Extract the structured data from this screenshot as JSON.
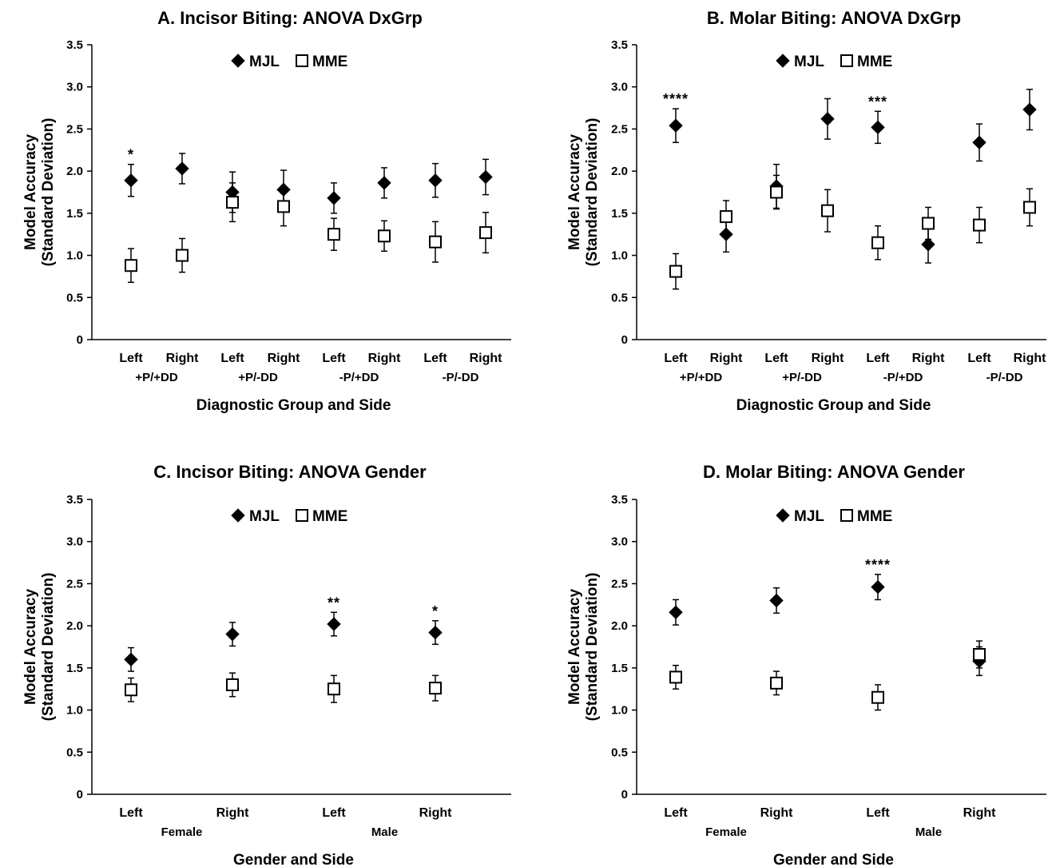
{
  "chart_data": [
    {
      "type": "scatter",
      "title": "A. Incisor Biting: ANOVA DxGrp",
      "ylabel": [
        "Model Accuracy",
        "(Standard Deviation)"
      ],
      "xlabel": "Diagnostic Group and Side",
      "ylim": [
        0,
        3.5
      ],
      "yticks": [
        "0",
        "0.5",
        "1.0",
        "1.5",
        "2.0",
        "2.5",
        "3.0",
        "3.5"
      ],
      "legend": [
        "MJL",
        "MME"
      ],
      "categories": [
        "Left",
        "Right",
        "Left",
        "Right",
        "Left",
        "Right",
        "Left",
        "Right"
      ],
      "groups": [
        {
          "label": "+P/+DD",
          "span": [
            0,
            1
          ]
        },
        {
          "label": "+P/-DD",
          "span": [
            2,
            3
          ]
        },
        {
          "label": "-P/+DD",
          "span": [
            4,
            5
          ]
        },
        {
          "label": "-P/-DD",
          "span": [
            6,
            7
          ]
        }
      ],
      "series": [
        {
          "name": "MJL",
          "marker": "diamond",
          "values": [
            1.89,
            2.03,
            1.75,
            1.78,
            1.68,
            1.86,
            1.89,
            1.93
          ],
          "err": [
            0.19,
            0.18,
            0.24,
            0.23,
            0.18,
            0.18,
            0.2,
            0.21
          ]
        },
        {
          "name": "MME",
          "marker": "square",
          "values": [
            0.88,
            1.0,
            1.63,
            1.58,
            1.25,
            1.23,
            1.16,
            1.27
          ],
          "err": [
            0.2,
            0.2,
            0.23,
            0.23,
            0.19,
            0.18,
            0.24,
            0.24
          ]
        }
      ],
      "annotations": [
        {
          "index": 0,
          "text": "*"
        }
      ]
    },
    {
      "type": "scatter",
      "title": "B. Molar Biting: ANOVA DxGrp",
      "ylabel": [
        "Model Accuracy",
        "(Standard Deviation)"
      ],
      "xlabel": "Diagnostic Group and Side",
      "ylim": [
        0,
        3.5
      ],
      "yticks": [
        "0",
        "0.5",
        "1.0",
        "1.5",
        "2.0",
        "2.5",
        "3.0",
        "3.5"
      ],
      "legend": [
        "MJL",
        "MME"
      ],
      "categories": [
        "Left",
        "Right",
        "Left",
        "Right",
        "Left",
        "Right",
        "Left",
        "Right"
      ],
      "groups": [
        {
          "label": "+P/+DD",
          "span": [
            0,
            1
          ]
        },
        {
          "label": "+P/-DD",
          "span": [
            2,
            3
          ]
        },
        {
          "label": "-P/+DD",
          "span": [
            4,
            5
          ]
        },
        {
          "label": "-P/-DD",
          "span": [
            6,
            7
          ]
        }
      ],
      "series": [
        {
          "name": "MJL",
          "marker": "diamond",
          "values": [
            2.54,
            1.25,
            1.82,
            2.62,
            2.52,
            1.13,
            2.34,
            2.73
          ],
          "err": [
            0.2,
            0.21,
            0.26,
            0.24,
            0.19,
            0.22,
            0.22,
            0.24
          ]
        },
        {
          "name": "MME",
          "marker": "square",
          "values": [
            0.81,
            1.46,
            1.75,
            1.53,
            1.15,
            1.38,
            1.36,
            1.57
          ],
          "err": [
            0.21,
            0.19,
            0.2,
            0.25,
            0.2,
            0.19,
            0.21,
            0.22
          ]
        }
      ],
      "annotations": [
        {
          "index": 0,
          "text": "****"
        },
        {
          "index": 4,
          "text": "***"
        }
      ]
    },
    {
      "type": "scatter",
      "title": "C. Incisor Biting: ANOVA Gender",
      "ylabel": [
        "Model Accuracy",
        "(Standard Deviation)"
      ],
      "xlabel": "Gender and Side",
      "ylim": [
        0,
        3.5
      ],
      "yticks": [
        "0",
        "0.5",
        "1.0",
        "1.5",
        "2.0",
        "2.5",
        "3.0",
        "3.5"
      ],
      "legend": [
        "MJL",
        "MME"
      ],
      "categories": [
        "Left",
        "Right",
        "Left",
        "Right"
      ],
      "groups": [
        {
          "label": "Female",
          "span": [
            0,
            1
          ]
        },
        {
          "label": "Male",
          "span": [
            2,
            3
          ]
        }
      ],
      "series": [
        {
          "name": "MJL",
          "marker": "diamond",
          "values": [
            1.6,
            1.9,
            2.02,
            1.92
          ],
          "err": [
            0.14,
            0.14,
            0.14,
            0.14
          ]
        },
        {
          "name": "MME",
          "marker": "square",
          "values": [
            1.24,
            1.3,
            1.25,
            1.26
          ],
          "err": [
            0.14,
            0.14,
            0.16,
            0.15
          ]
        }
      ],
      "annotations": [
        {
          "index": 2,
          "text": "**"
        },
        {
          "index": 3,
          "text": "*"
        }
      ]
    },
    {
      "type": "scatter",
      "title": "D. Molar Biting: ANOVA Gender",
      "ylabel": [
        "Model Accuracy",
        "(Standard Deviation)"
      ],
      "xlabel": "Gender and Side",
      "ylim": [
        0,
        3.5
      ],
      "yticks": [
        "0",
        "0.5",
        "1.0",
        "1.5",
        "2.0",
        "2.5",
        "3.0",
        "3.5"
      ],
      "legend": [
        "MJL",
        "MME"
      ],
      "categories": [
        "Left",
        "Right",
        "Left",
        "Right"
      ],
      "groups": [
        {
          "label": "Female",
          "span": [
            0,
            1
          ]
        },
        {
          "label": "Male",
          "span": [
            2,
            3
          ]
        }
      ],
      "series": [
        {
          "name": "MJL",
          "marker": "diamond",
          "values": [
            2.16,
            2.3,
            2.46,
            1.58
          ],
          "err": [
            0.15,
            0.15,
            0.15,
            0.17
          ]
        },
        {
          "name": "MME",
          "marker": "square",
          "values": [
            1.39,
            1.32,
            1.15,
            1.66
          ],
          "err": [
            0.14,
            0.14,
            0.15,
            0.16
          ]
        }
      ],
      "annotations": [
        {
          "index": 2,
          "text": "****"
        }
      ]
    }
  ]
}
